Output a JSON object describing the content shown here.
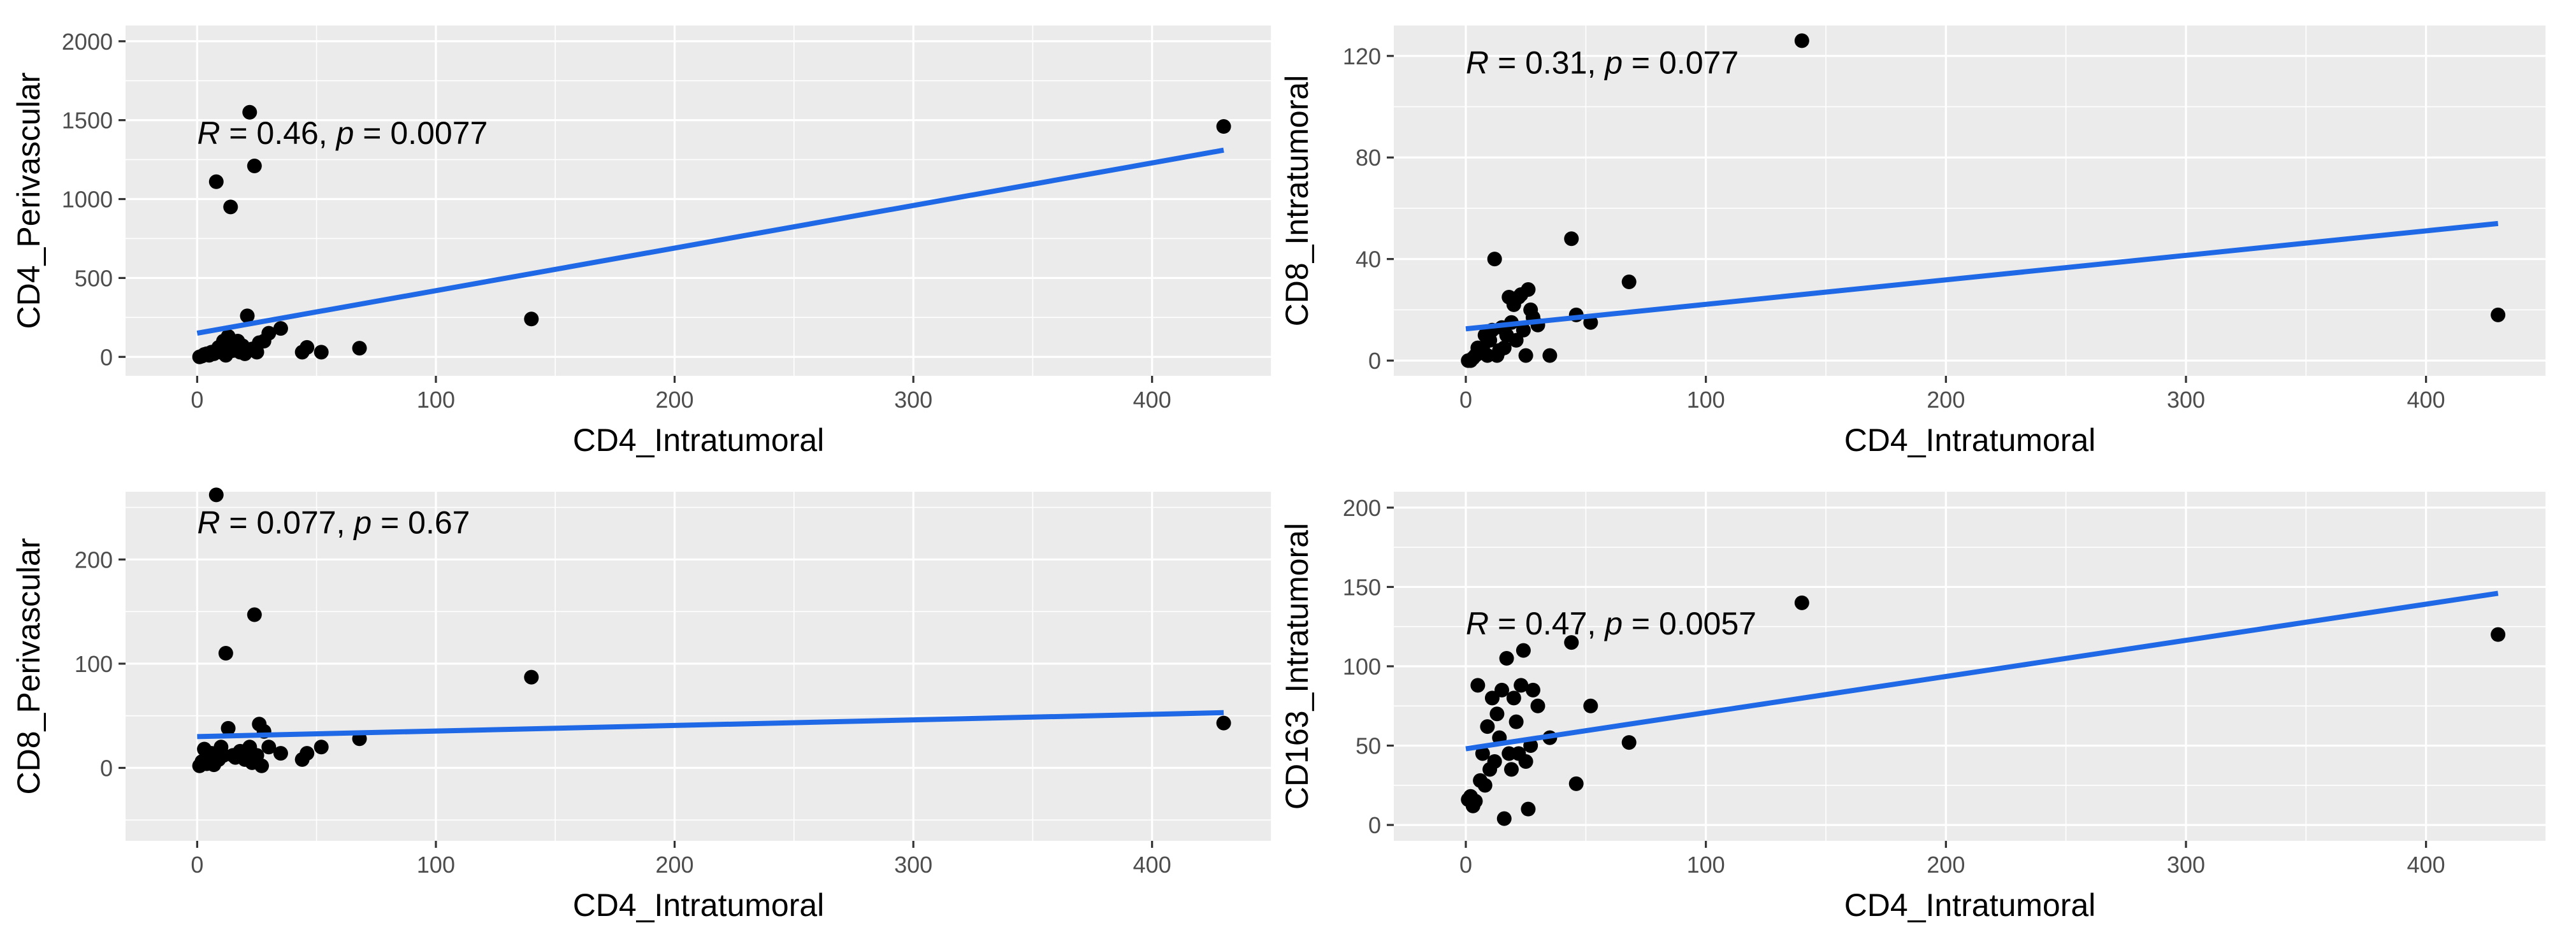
{
  "chart_data": [
    {
      "type": "scatter",
      "id": "p1",
      "xlabel": "CD4_Intratumoral",
      "ylabel": "CD4_Perivascular",
      "xlim": [
        -30,
        450
      ],
      "ylim": [
        -120,
        2100
      ],
      "xticks": [
        0,
        100,
        200,
        300,
        400
      ],
      "yticks": [
        0,
        500,
        1000,
        1500,
        2000
      ],
      "annotation": {
        "r_symbol": "R",
        "r_text": " = 0.46, ",
        "p_symbol": "p",
        "p_text": " = 0.0077",
        "x": 0,
        "y": 1350
      },
      "fit": {
        "x1": 0,
        "y1": 150,
        "x2": 430,
        "y2": 1310
      },
      "points": [
        [
          430,
          1460
        ],
        [
          140,
          240
        ],
        [
          68,
          55
        ],
        [
          52,
          30
        ],
        [
          46,
          60
        ],
        [
          44,
          30
        ],
        [
          35,
          180
        ],
        [
          30,
          150
        ],
        [
          28,
          100
        ],
        [
          25,
          30
        ],
        [
          24,
          1210
        ],
        [
          23,
          50
        ],
        [
          22,
          1550
        ],
        [
          21,
          260
        ],
        [
          20,
          20
        ],
        [
          19,
          70
        ],
        [
          18,
          30
        ],
        [
          17,
          100
        ],
        [
          16,
          60
        ],
        [
          15,
          40
        ],
        [
          14,
          950
        ],
        [
          13,
          130
        ],
        [
          12,
          10
        ],
        [
          11,
          100
        ],
        [
          10,
          30
        ],
        [
          9,
          60
        ],
        [
          8,
          1110
        ],
        [
          7,
          20
        ],
        [
          6,
          30
        ],
        [
          5,
          10
        ],
        [
          4,
          20
        ],
        [
          3,
          15
        ],
        [
          2,
          5
        ],
        [
          1,
          0
        ],
        [
          26,
          90
        ],
        [
          24,
          40
        ]
      ]
    },
    {
      "type": "scatter",
      "id": "p2",
      "xlabel": "CD4_Intratumoral",
      "ylabel": "CD8_Intratumoral",
      "xlim": [
        -30,
        450
      ],
      "ylim": [
        -6,
        132
      ],
      "xticks": [
        0,
        100,
        200,
        300,
        400
      ],
      "yticks": [
        0,
        40,
        80,
        120
      ],
      "annotation": {
        "r_symbol": "R",
        "r_text": " = 0.31, ",
        "p_symbol": "p",
        "p_text": " = 0.077",
        "x": 0,
        "y": 113
      },
      "fit": {
        "x1": 0,
        "y1": 12.5,
        "x2": 430,
        "y2": 54
      },
      "points": [
        [
          430,
          18
        ],
        [
          140,
          126
        ],
        [
          68,
          31
        ],
        [
          52,
          15
        ],
        [
          46,
          18
        ],
        [
          44,
          48
        ],
        [
          35,
          2
        ],
        [
          30,
          14
        ],
        [
          28,
          17
        ],
        [
          26,
          28
        ],
        [
          25,
          2
        ],
        [
          24,
          12
        ],
        [
          22,
          25
        ],
        [
          21,
          8
        ],
        [
          20,
          22
        ],
        [
          19,
          15
        ],
        [
          18,
          25
        ],
        [
          17,
          10
        ],
        [
          16,
          5
        ],
        [
          15,
          13
        ],
        [
          14,
          4
        ],
        [
          13,
          2
        ],
        [
          12,
          40
        ],
        [
          11,
          12
        ],
        [
          10,
          8
        ],
        [
          9,
          2
        ],
        [
          8,
          10
        ],
        [
          7,
          5
        ],
        [
          6,
          3
        ],
        [
          5,
          5
        ],
        [
          4,
          2
        ],
        [
          3,
          1
        ],
        [
          2,
          0
        ],
        [
          1,
          0
        ],
        [
          23,
          26
        ],
        [
          27,
          20
        ]
      ]
    },
    {
      "type": "scatter",
      "id": "p3",
      "xlabel": "CD4_Intratumoral",
      "ylabel": "CD8_Perivascular",
      "xlim": [
        -30,
        450
      ],
      "ylim": [
        -70,
        265
      ],
      "xticks": [
        0,
        100,
        200,
        300,
        400
      ],
      "yticks": [
        0,
        100,
        200
      ],
      "annotation": {
        "r_symbol": "R",
        "r_text": " = 0.077, ",
        "p_symbol": "p",
        "p_text": " = 0.67",
        "x": 0,
        "y": 225
      },
      "fit": {
        "x1": 0,
        "y1": 30,
        "x2": 430,
        "y2": 53
      },
      "points": [
        [
          430,
          43
        ],
        [
          140,
          87
        ],
        [
          68,
          28
        ],
        [
          52,
          20
        ],
        [
          46,
          14
        ],
        [
          44,
          8
        ],
        [
          35,
          14
        ],
        [
          30,
          20
        ],
        [
          28,
          35
        ],
        [
          26,
          42
        ],
        [
          24,
          147
        ],
        [
          23,
          5
        ],
        [
          22,
          20
        ],
        [
          21,
          14
        ],
        [
          20,
          8
        ],
        [
          19,
          14
        ],
        [
          18,
          16
        ],
        [
          16,
          10
        ],
        [
          15,
          12
        ],
        [
          13,
          38
        ],
        [
          12,
          110
        ],
        [
          11,
          12
        ],
        [
          10,
          20
        ],
        [
          9,
          8
        ],
        [
          8,
          262
        ],
        [
          7,
          3
        ],
        [
          6,
          14
        ],
        [
          5,
          8
        ],
        [
          4,
          4
        ],
        [
          3,
          18
        ],
        [
          2,
          6
        ],
        [
          1,
          2
        ],
        [
          25,
          12
        ],
        [
          27,
          2
        ]
      ]
    },
    {
      "type": "scatter",
      "id": "p4",
      "xlabel": "CD4_Intratumoral",
      "ylabel": "CD163_Intratumoral",
      "xlim": [
        -30,
        450
      ],
      "ylim": [
        -10,
        210
      ],
      "xticks": [
        0,
        100,
        200,
        300,
        400
      ],
      "yticks": [
        0,
        50,
        100,
        150,
        200
      ],
      "annotation": {
        "r_symbol": "R",
        "r_text": " = 0.47, ",
        "p_symbol": "p",
        "p_text": " = 0.0057",
        "x": 0,
        "y": 120
      },
      "fit": {
        "x1": 0,
        "y1": 48,
        "x2": 430,
        "y2": 146
      },
      "points": [
        [
          430,
          120
        ],
        [
          140,
          140
        ],
        [
          68,
          52
        ],
        [
          52,
          75
        ],
        [
          46,
          26
        ],
        [
          44,
          115
        ],
        [
          35,
          55
        ],
        [
          30,
          75
        ],
        [
          28,
          85
        ],
        [
          26,
          10
        ],
        [
          25,
          40
        ],
        [
          24,
          110
        ],
        [
          22,
          45
        ],
        [
          21,
          65
        ],
        [
          20,
          80
        ],
        [
          19,
          35
        ],
        [
          18,
          45
        ],
        [
          17,
          105
        ],
        [
          16,
          4
        ],
        [
          15,
          85
        ],
        [
          14,
          55
        ],
        [
          13,
          70
        ],
        [
          12,
          40
        ],
        [
          11,
          80
        ],
        [
          10,
          35
        ],
        [
          9,
          62
        ],
        [
          8,
          25
        ],
        [
          7,
          45
        ],
        [
          6,
          28
        ],
        [
          5,
          88
        ],
        [
          4,
          15
        ],
        [
          3,
          12
        ],
        [
          2,
          18
        ],
        [
          1,
          16
        ],
        [
          23,
          88
        ],
        [
          27,
          50
        ]
      ]
    }
  ]
}
